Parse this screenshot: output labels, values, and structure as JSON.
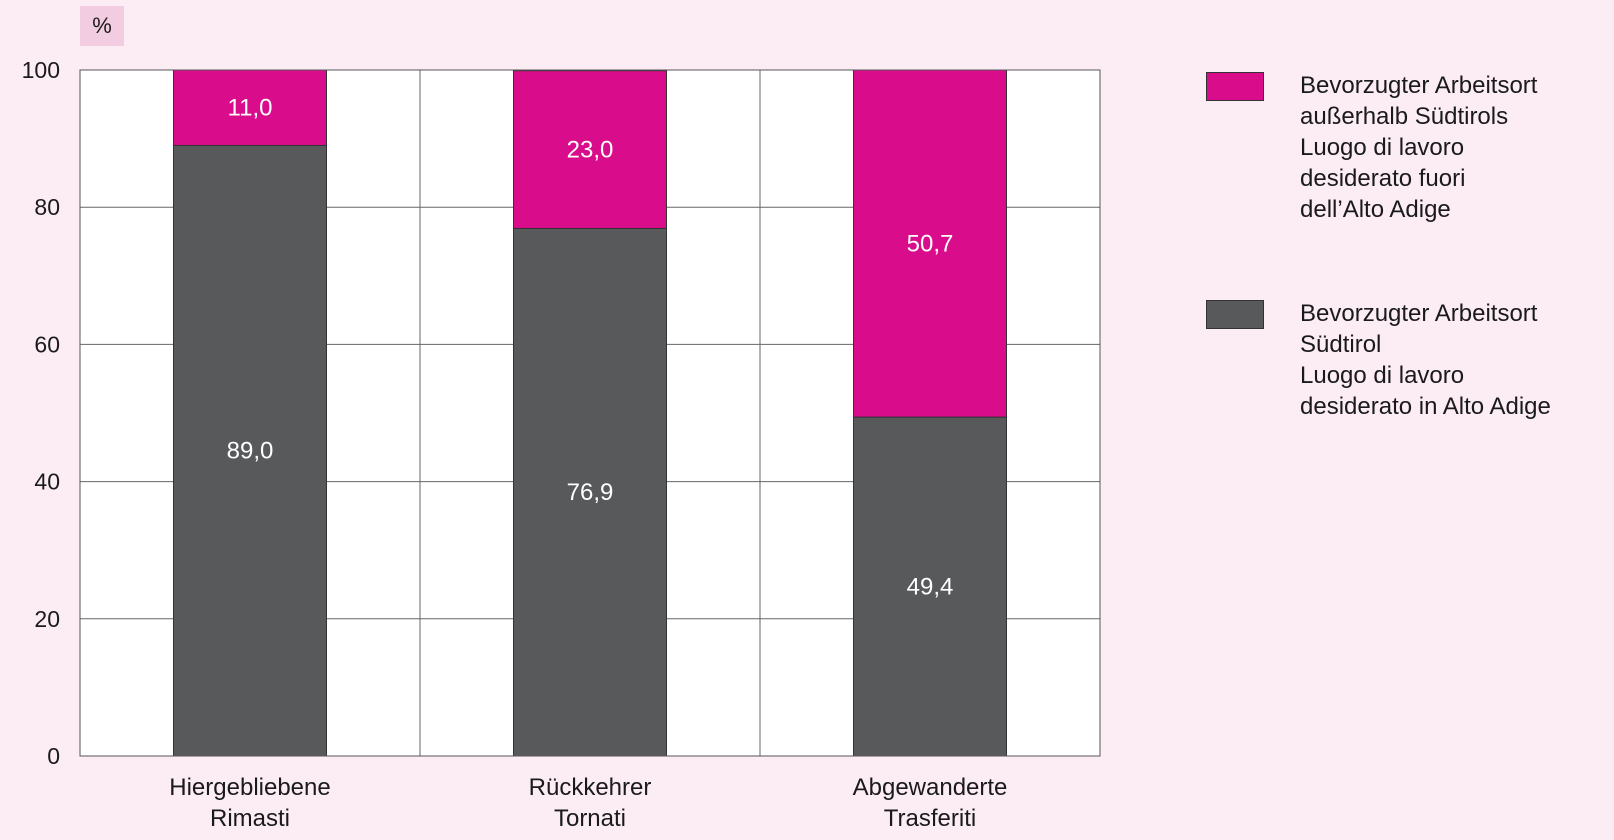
{
  "chart_data": {
    "type": "bar",
    "stacked": true,
    "unit_label": "%",
    "categories": [
      "Hiergebliebene\nRimasti",
      "Rückkehrer\nTornati",
      "Abgewanderte\nTrasferiti"
    ],
    "series": [
      {
        "name": "Bevorzugter Arbeitsort\nSüdtirol\nLuogo di lavoro\ndesiderato in Alto Adige",
        "values": [
          89.0,
          76.9,
          49.4
        ],
        "labels": [
          "89,0",
          "76,9",
          "49,4"
        ],
        "color": "#58595b"
      },
      {
        "name": "Bevorzugter Arbeitsort\naußerhalb Südtirols\nLuogo di lavoro\ndesiderato fuori\ndell’Alto Adige",
        "values": [
          11.0,
          23.0,
          50.7
        ],
        "labels": [
          "11,0",
          "23,0",
          "50,7"
        ],
        "color": "#d90c8c"
      }
    ],
    "ylim": [
      0,
      100
    ],
    "yticks": [
      0,
      20,
      40,
      60,
      80,
      100
    ],
    "grid": true,
    "legend_position": "right"
  }
}
